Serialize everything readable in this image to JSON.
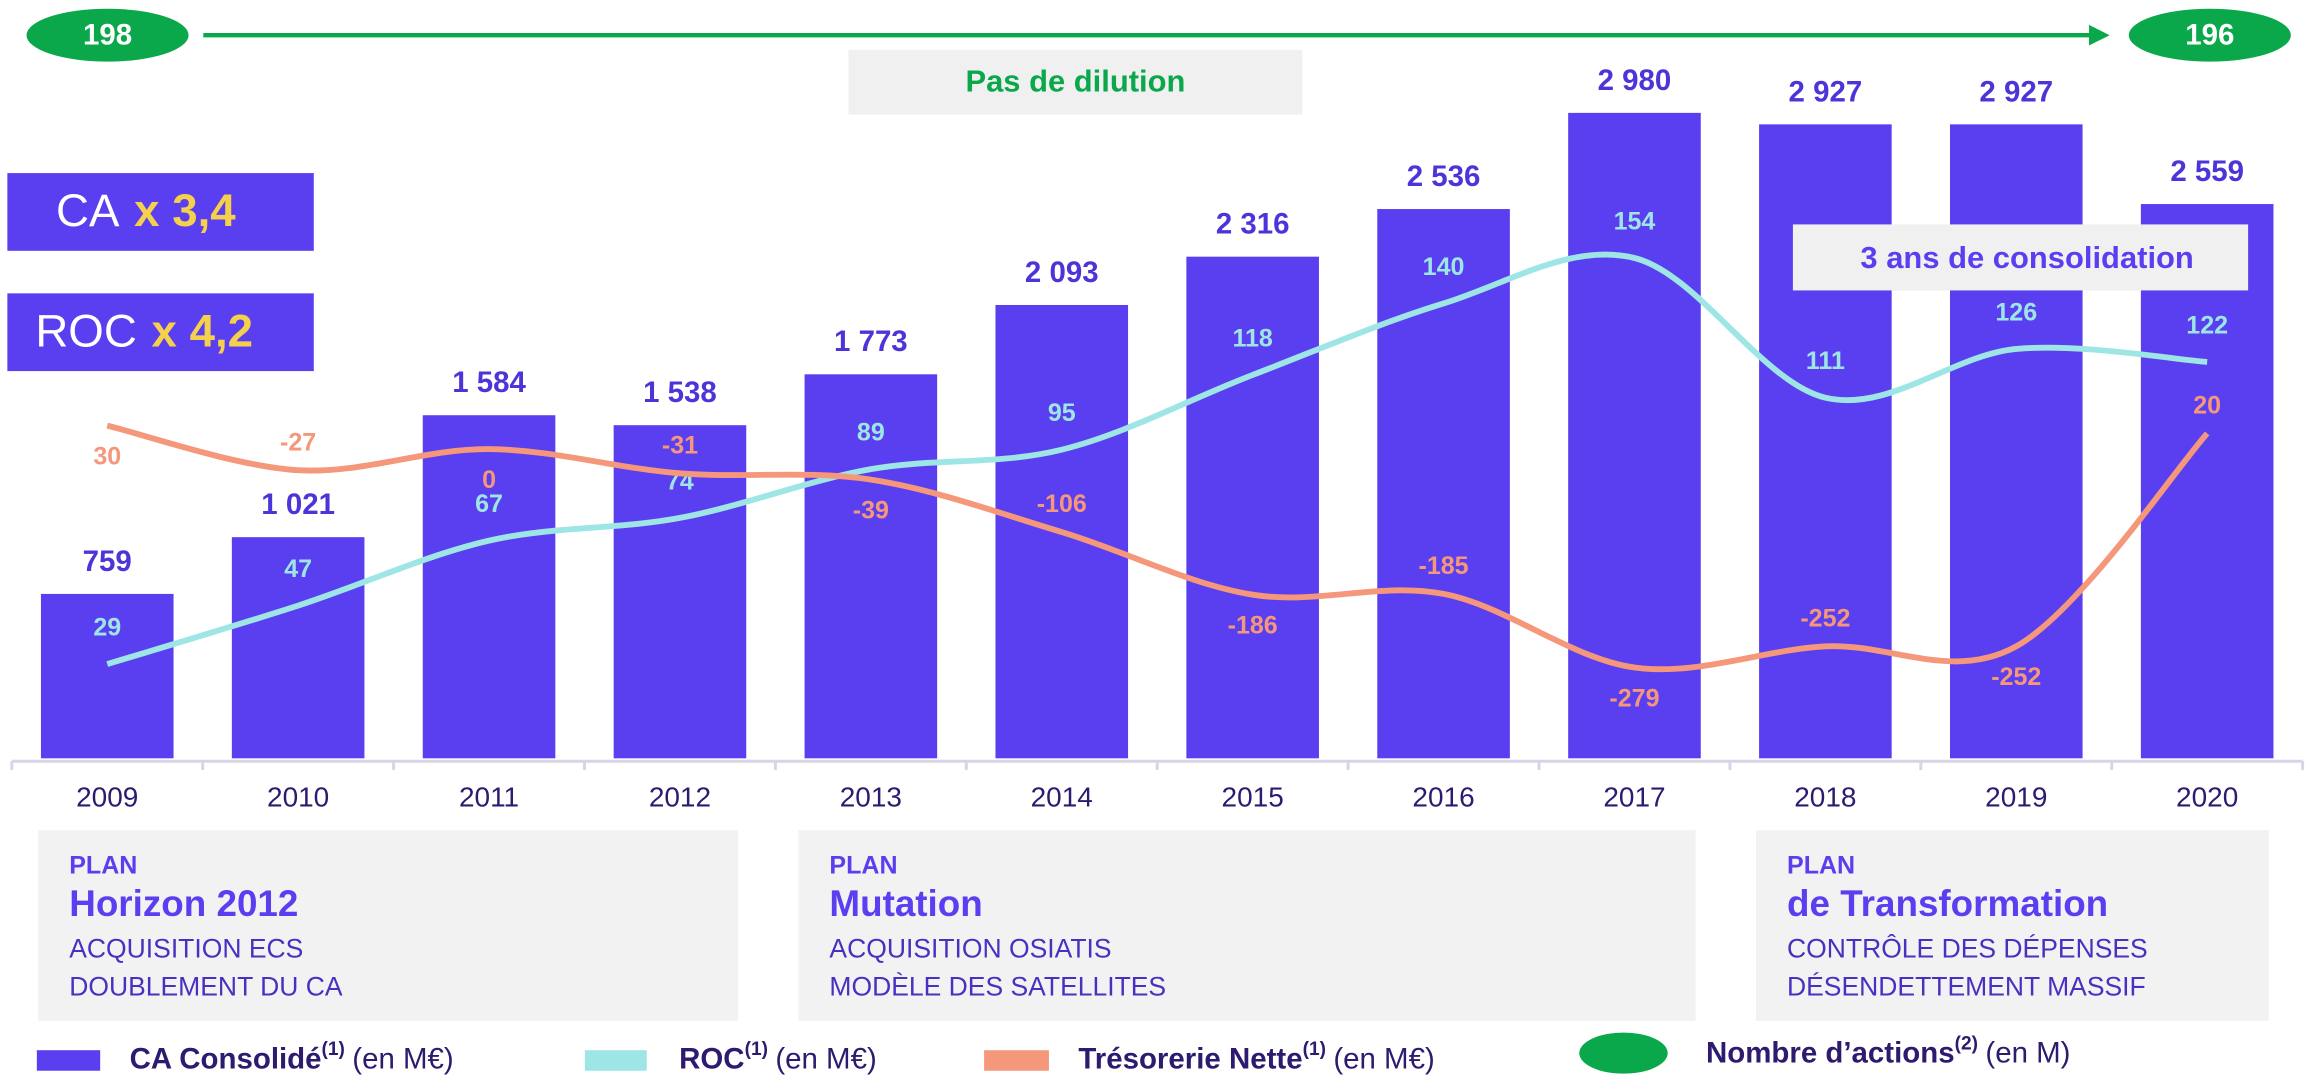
{
  "chart_data": {
    "type": "bar-line",
    "categories": [
      "2009",
      "2010",
      "2011",
      "2012",
      "2013",
      "2014",
      "2015",
      "2016",
      "2017",
      "2018",
      "2019",
      "2020"
    ],
    "ylim": [
      0,
      3000
    ],
    "y2lim": [
      0,
      200
    ],
    "y3lim": [
      -395,
      435
    ],
    "series": [
      {
        "name": "CA Consolidé",
        "note": "(1)",
        "unit": "(en M€)",
        "type": "bar",
        "color": "#5a3ff0",
        "values": [
          759,
          1021,
          1584,
          1538,
          1773,
          2093,
          2316,
          2536,
          2980,
          2927,
          2927,
          2559
        ],
        "value_labels": [
          "759",
          "1 021",
          "1 584",
          "1 538",
          "1 773",
          "2 093",
          "2 316",
          "2 536",
          "2 980",
          "2 927",
          "2 927",
          "2 559"
        ]
      },
      {
        "name": "ROC",
        "note": "(1)",
        "unit": "(en M€)",
        "type": "line",
        "axis": "y2",
        "color": "#9ee6e6",
        "values": [
          29,
          47,
          67,
          74,
          89,
          95,
          118,
          140,
          154,
          111,
          126,
          122
        ]
      },
      {
        "name": "Trésorerie Nette",
        "note": "(1)",
        "unit": "(en M€)",
        "type": "line",
        "axis": "y3",
        "color": "#f5977a",
        "values": [
          30,
          -27,
          0,
          -31,
          -39,
          -106,
          -186,
          -185,
          -279,
          -252,
          -252,
          20
        ]
      }
    ],
    "shares": {
      "name": "Nombre d’actions",
      "note": "(2)",
      "unit": "(en M)",
      "start": 198,
      "end": 196,
      "label": "Pas de dilution",
      "color": "#0aa84a"
    },
    "multipliers": [
      {
        "label": "CA",
        "factor": "x 3,4"
      },
      {
        "label": "ROC",
        "factor": "x 4,2"
      }
    ],
    "annotation": "3 ans de consolidation",
    "plans": [
      {
        "kicker": "PLAN",
        "title": "Horizon 2012",
        "lines": [
          "ACQUISITION ECS",
          "DOUBLEMENT DU CA"
        ]
      },
      {
        "kicker": "PLAN",
        "title": "Mutation",
        "lines": [
          "ACQUISITION OSIATIS",
          "MODÈLE DES SATELLITES"
        ]
      },
      {
        "kicker": "PLAN",
        "title": "de Transformation",
        "lines": [
          "CONTRÔLE DES DÉPENSES",
          "DÉSENDETTEMENT MASSIF"
        ]
      }
    ]
  }
}
